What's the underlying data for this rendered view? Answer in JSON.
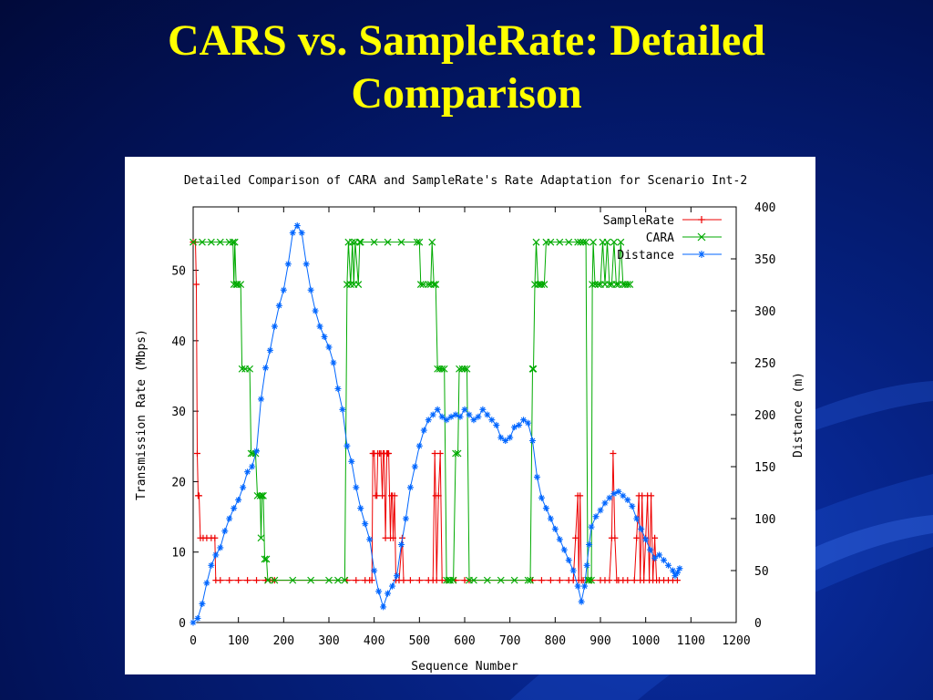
{
  "slide": {
    "title_line1": "CARS vs. SampleRate: Detailed",
    "title_line2": "Comparison",
    "title_color": "#ffff00",
    "background_color": "#061e7a"
  },
  "chart_data": {
    "type": "line",
    "title": "Detailed Comparison of CARA and SampleRate's Rate Adaptation for Scenario Int-2",
    "xlabel": "Sequence Number",
    "ylabel": "Transmission Rate (Mbps)",
    "y2label": "Distance (m)",
    "xlim": [
      0,
      1200
    ],
    "ylim": [
      0,
      59
    ],
    "y2lim": [
      0,
      400
    ],
    "xticks": [
      0,
      100,
      200,
      300,
      400,
      500,
      600,
      700,
      800,
      900,
      1000,
      1100,
      1200
    ],
    "yticks": [
      0,
      10,
      20,
      30,
      40,
      50
    ],
    "y2ticks": [
      0,
      50,
      100,
      150,
      200,
      250,
      300,
      350,
      400
    ],
    "grid": false,
    "legend_position": "top-right",
    "series": [
      {
        "name": "SampleRate",
        "axis": "left",
        "color": "#ee0000",
        "marker": "+",
        "points": [
          [
            0,
            54
          ],
          [
            5,
            54
          ],
          [
            7,
            48
          ],
          [
            9,
            24
          ],
          [
            11,
            18
          ],
          [
            13,
            18
          ],
          [
            16,
            12
          ],
          [
            22,
            12
          ],
          [
            30,
            12
          ],
          [
            40,
            12
          ],
          [
            48,
            12
          ],
          [
            50,
            6
          ],
          [
            60,
            6
          ],
          [
            80,
            6
          ],
          [
            100,
            6
          ],
          [
            120,
            6
          ],
          [
            140,
            6
          ],
          [
            160,
            6
          ],
          [
            170,
            6
          ],
          [
            175,
            6
          ],
          [
            180,
            6
          ],
          [
            340,
            6
          ],
          [
            360,
            6
          ],
          [
            380,
            6
          ],
          [
            390,
            6
          ],
          [
            395,
            6
          ],
          [
            397,
            24
          ],
          [
            400,
            24
          ],
          [
            403,
            18
          ],
          [
            406,
            18
          ],
          [
            408,
            24
          ],
          [
            412,
            24
          ],
          [
            415,
            24
          ],
          [
            418,
            18
          ],
          [
            420,
            24
          ],
          [
            422,
            24
          ],
          [
            425,
            12
          ],
          [
            428,
            24
          ],
          [
            430,
            24
          ],
          [
            432,
            24
          ],
          [
            436,
            12
          ],
          [
            438,
            18
          ],
          [
            440,
            18
          ],
          [
            442,
            12
          ],
          [
            445,
            18
          ],
          [
            448,
            6
          ],
          [
            455,
            6
          ],
          [
            462,
            12
          ],
          [
            465,
            6
          ],
          [
            480,
            6
          ],
          [
            500,
            6
          ],
          [
            520,
            6
          ],
          [
            530,
            6
          ],
          [
            534,
            24
          ],
          [
            536,
            18
          ],
          [
            538,
            6
          ],
          [
            542,
            18
          ],
          [
            546,
            24
          ],
          [
            550,
            6
          ],
          [
            560,
            6
          ],
          [
            580,
            6
          ],
          [
            600,
            6
          ],
          [
            610,
            6
          ],
          [
            750,
            6
          ],
          [
            770,
            6
          ],
          [
            790,
            6
          ],
          [
            810,
            6
          ],
          [
            830,
            6
          ],
          [
            840,
            6
          ],
          [
            845,
            12
          ],
          [
            850,
            18
          ],
          [
            852,
            6
          ],
          [
            855,
            18
          ],
          [
            858,
            6
          ],
          [
            862,
            6
          ],
          [
            880,
            6
          ],
          [
            900,
            6
          ],
          [
            910,
            6
          ],
          [
            920,
            6
          ],
          [
            925,
            12
          ],
          [
            928,
            24
          ],
          [
            932,
            12
          ],
          [
            936,
            6
          ],
          [
            940,
            6
          ],
          [
            950,
            6
          ],
          [
            960,
            6
          ],
          [
            975,
            6
          ],
          [
            980,
            12
          ],
          [
            985,
            18
          ],
          [
            988,
            6
          ],
          [
            992,
            18
          ],
          [
            996,
            6
          ],
          [
            1000,
            12
          ],
          [
            1004,
            18
          ],
          [
            1008,
            6
          ],
          [
            1012,
            18
          ],
          [
            1016,
            6
          ],
          [
            1020,
            12
          ],
          [
            1024,
            6
          ],
          [
            1030,
            6
          ],
          [
            1040,
            6
          ],
          [
            1050,
            6
          ],
          [
            1060,
            6
          ],
          [
            1070,
            6
          ]
        ]
      },
      {
        "name": "CARA",
        "axis": "left",
        "color": "#00aa00",
        "marker": "x",
        "points": [
          [
            0,
            54
          ],
          [
            20,
            54
          ],
          [
            40,
            54
          ],
          [
            60,
            54
          ],
          [
            80,
            54
          ],
          [
            88,
            54
          ],
          [
            90,
            48
          ],
          [
            92,
            54
          ],
          [
            95,
            48
          ],
          [
            98,
            48
          ],
          [
            105,
            48
          ],
          [
            108,
            36
          ],
          [
            115,
            36
          ],
          [
            125,
            36
          ],
          [
            128,
            24
          ],
          [
            132,
            24
          ],
          [
            138,
            24
          ],
          [
            142,
            18
          ],
          [
            148,
            18
          ],
          [
            150,
            12
          ],
          [
            152,
            18
          ],
          [
            155,
            18
          ],
          [
            158,
            9
          ],
          [
            162,
            9
          ],
          [
            165,
            6
          ],
          [
            180,
            6
          ],
          [
            220,
            6
          ],
          [
            260,
            6
          ],
          [
            300,
            6
          ],
          [
            320,
            6
          ],
          [
            335,
            6
          ],
          [
            340,
            48
          ],
          [
            343,
            54
          ],
          [
            348,
            48
          ],
          [
            352,
            54
          ],
          [
            355,
            48
          ],
          [
            358,
            54
          ],
          [
            365,
            48
          ],
          [
            368,
            54
          ],
          [
            370,
            54
          ],
          [
            400,
            54
          ],
          [
            430,
            54
          ],
          [
            460,
            54
          ],
          [
            495,
            54
          ],
          [
            500,
            54
          ],
          [
            503,
            48
          ],
          [
            508,
            48
          ],
          [
            520,
            48
          ],
          [
            525,
            48
          ],
          [
            528,
            54
          ],
          [
            532,
            48
          ],
          [
            536,
            48
          ],
          [
            540,
            36
          ],
          [
            545,
            36
          ],
          [
            550,
            36
          ],
          [
            555,
            36
          ],
          [
            560,
            6
          ],
          [
            565,
            6
          ],
          [
            568,
            6
          ],
          [
            575,
            6
          ],
          [
            580,
            24
          ],
          [
            585,
            24
          ],
          [
            588,
            36
          ],
          [
            595,
            36
          ],
          [
            600,
            36
          ],
          [
            605,
            36
          ],
          [
            610,
            6
          ],
          [
            620,
            6
          ],
          [
            650,
            6
          ],
          [
            680,
            6
          ],
          [
            710,
            6
          ],
          [
            740,
            6
          ],
          [
            745,
            6
          ],
          [
            750,
            36
          ],
          [
            752,
            36
          ],
          [
            755,
            48
          ],
          [
            758,
            54
          ],
          [
            762,
            48
          ],
          [
            766,
            48
          ],
          [
            770,
            48
          ],
          [
            776,
            48
          ],
          [
            780,
            54
          ],
          [
            790,
            54
          ],
          [
            810,
            54
          ],
          [
            830,
            54
          ],
          [
            850,
            54
          ],
          [
            856,
            54
          ],
          [
            862,
            54
          ],
          [
            868,
            54
          ],
          [
            872,
            6
          ],
          [
            875,
            6
          ],
          [
            880,
            6
          ],
          [
            882,
            48
          ],
          [
            884,
            54
          ],
          [
            888,
            48
          ],
          [
            895,
            48
          ],
          [
            900,
            48
          ],
          [
            905,
            54
          ],
          [
            910,
            48
          ],
          [
            915,
            54
          ],
          [
            920,
            48
          ],
          [
            925,
            48
          ],
          [
            930,
            54
          ],
          [
            935,
            48
          ],
          [
            940,
            48
          ],
          [
            945,
            54
          ],
          [
            950,
            48
          ],
          [
            955,
            48
          ],
          [
            960,
            48
          ],
          [
            965,
            48
          ]
        ]
      },
      {
        "name": "Distance",
        "axis": "right",
        "color": "#0066ff",
        "marker": "*",
        "points": [
          [
            0,
            0
          ],
          [
            10,
            4
          ],
          [
            20,
            18
          ],
          [
            30,
            38
          ],
          [
            40,
            55
          ],
          [
            50,
            65
          ],
          [
            60,
            72
          ],
          [
            70,
            88
          ],
          [
            80,
            100
          ],
          [
            90,
            110
          ],
          [
            100,
            118
          ],
          [
            110,
            130
          ],
          [
            120,
            145
          ],
          [
            130,
            150
          ],
          [
            140,
            165
          ],
          [
            150,
            215
          ],
          [
            160,
            245
          ],
          [
            170,
            262
          ],
          [
            180,
            285
          ],
          [
            190,
            305
          ],
          [
            200,
            320
          ],
          [
            210,
            345
          ],
          [
            220,
            375
          ],
          [
            230,
            382
          ],
          [
            240,
            375
          ],
          [
            250,
            345
          ],
          [
            260,
            320
          ],
          [
            270,
            300
          ],
          [
            280,
            285
          ],
          [
            290,
            275
          ],
          [
            300,
            265
          ],
          [
            310,
            250
          ],
          [
            320,
            225
          ],
          [
            330,
            205
          ],
          [
            340,
            170
          ],
          [
            350,
            155
          ],
          [
            360,
            130
          ],
          [
            370,
            110
          ],
          [
            380,
            95
          ],
          [
            390,
            80
          ],
          [
            400,
            50
          ],
          [
            410,
            30
          ],
          [
            420,
            15
          ],
          [
            430,
            28
          ],
          [
            440,
            35
          ],
          [
            450,
            45
          ],
          [
            460,
            75
          ],
          [
            470,
            100
          ],
          [
            480,
            130
          ],
          [
            490,
            150
          ],
          [
            500,
            170
          ],
          [
            510,
            185
          ],
          [
            520,
            195
          ],
          [
            530,
            200
          ],
          [
            540,
            205
          ],
          [
            550,
            198
          ],
          [
            560,
            195
          ],
          [
            570,
            198
          ],
          [
            580,
            200
          ],
          [
            590,
            198
          ],
          [
            600,
            205
          ],
          [
            610,
            200
          ],
          [
            620,
            195
          ],
          [
            630,
            198
          ],
          [
            640,
            205
          ],
          [
            650,
            200
          ],
          [
            660,
            195
          ],
          [
            670,
            190
          ],
          [
            680,
            178
          ],
          [
            690,
            175
          ],
          [
            700,
            178
          ],
          [
            710,
            188
          ],
          [
            720,
            190
          ],
          [
            730,
            195
          ],
          [
            740,
            192
          ],
          [
            750,
            175
          ],
          [
            760,
            140
          ],
          [
            770,
            120
          ],
          [
            780,
            110
          ],
          [
            790,
            100
          ],
          [
            800,
            90
          ],
          [
            810,
            80
          ],
          [
            820,
            70
          ],
          [
            830,
            60
          ],
          [
            840,
            50
          ],
          [
            850,
            35
          ],
          [
            858,
            20
          ],
          [
            865,
            35
          ],
          [
            870,
            55
          ],
          [
            875,
            75
          ],
          [
            880,
            92
          ],
          [
            890,
            102
          ],
          [
            900,
            108
          ],
          [
            910,
            115
          ],
          [
            920,
            120
          ],
          [
            930,
            124
          ],
          [
            940,
            126
          ],
          [
            950,
            122
          ],
          [
            960,
            118
          ],
          [
            970,
            112
          ],
          [
            980,
            100
          ],
          [
            990,
            90
          ],
          [
            1000,
            80
          ],
          [
            1010,
            70
          ],
          [
            1020,
            62
          ],
          [
            1030,
            65
          ],
          [
            1040,
            60
          ],
          [
            1050,
            55
          ],
          [
            1060,
            50
          ],
          [
            1065,
            45
          ],
          [
            1070,
            48
          ],
          [
            1075,
            52
          ]
        ]
      }
    ]
  }
}
